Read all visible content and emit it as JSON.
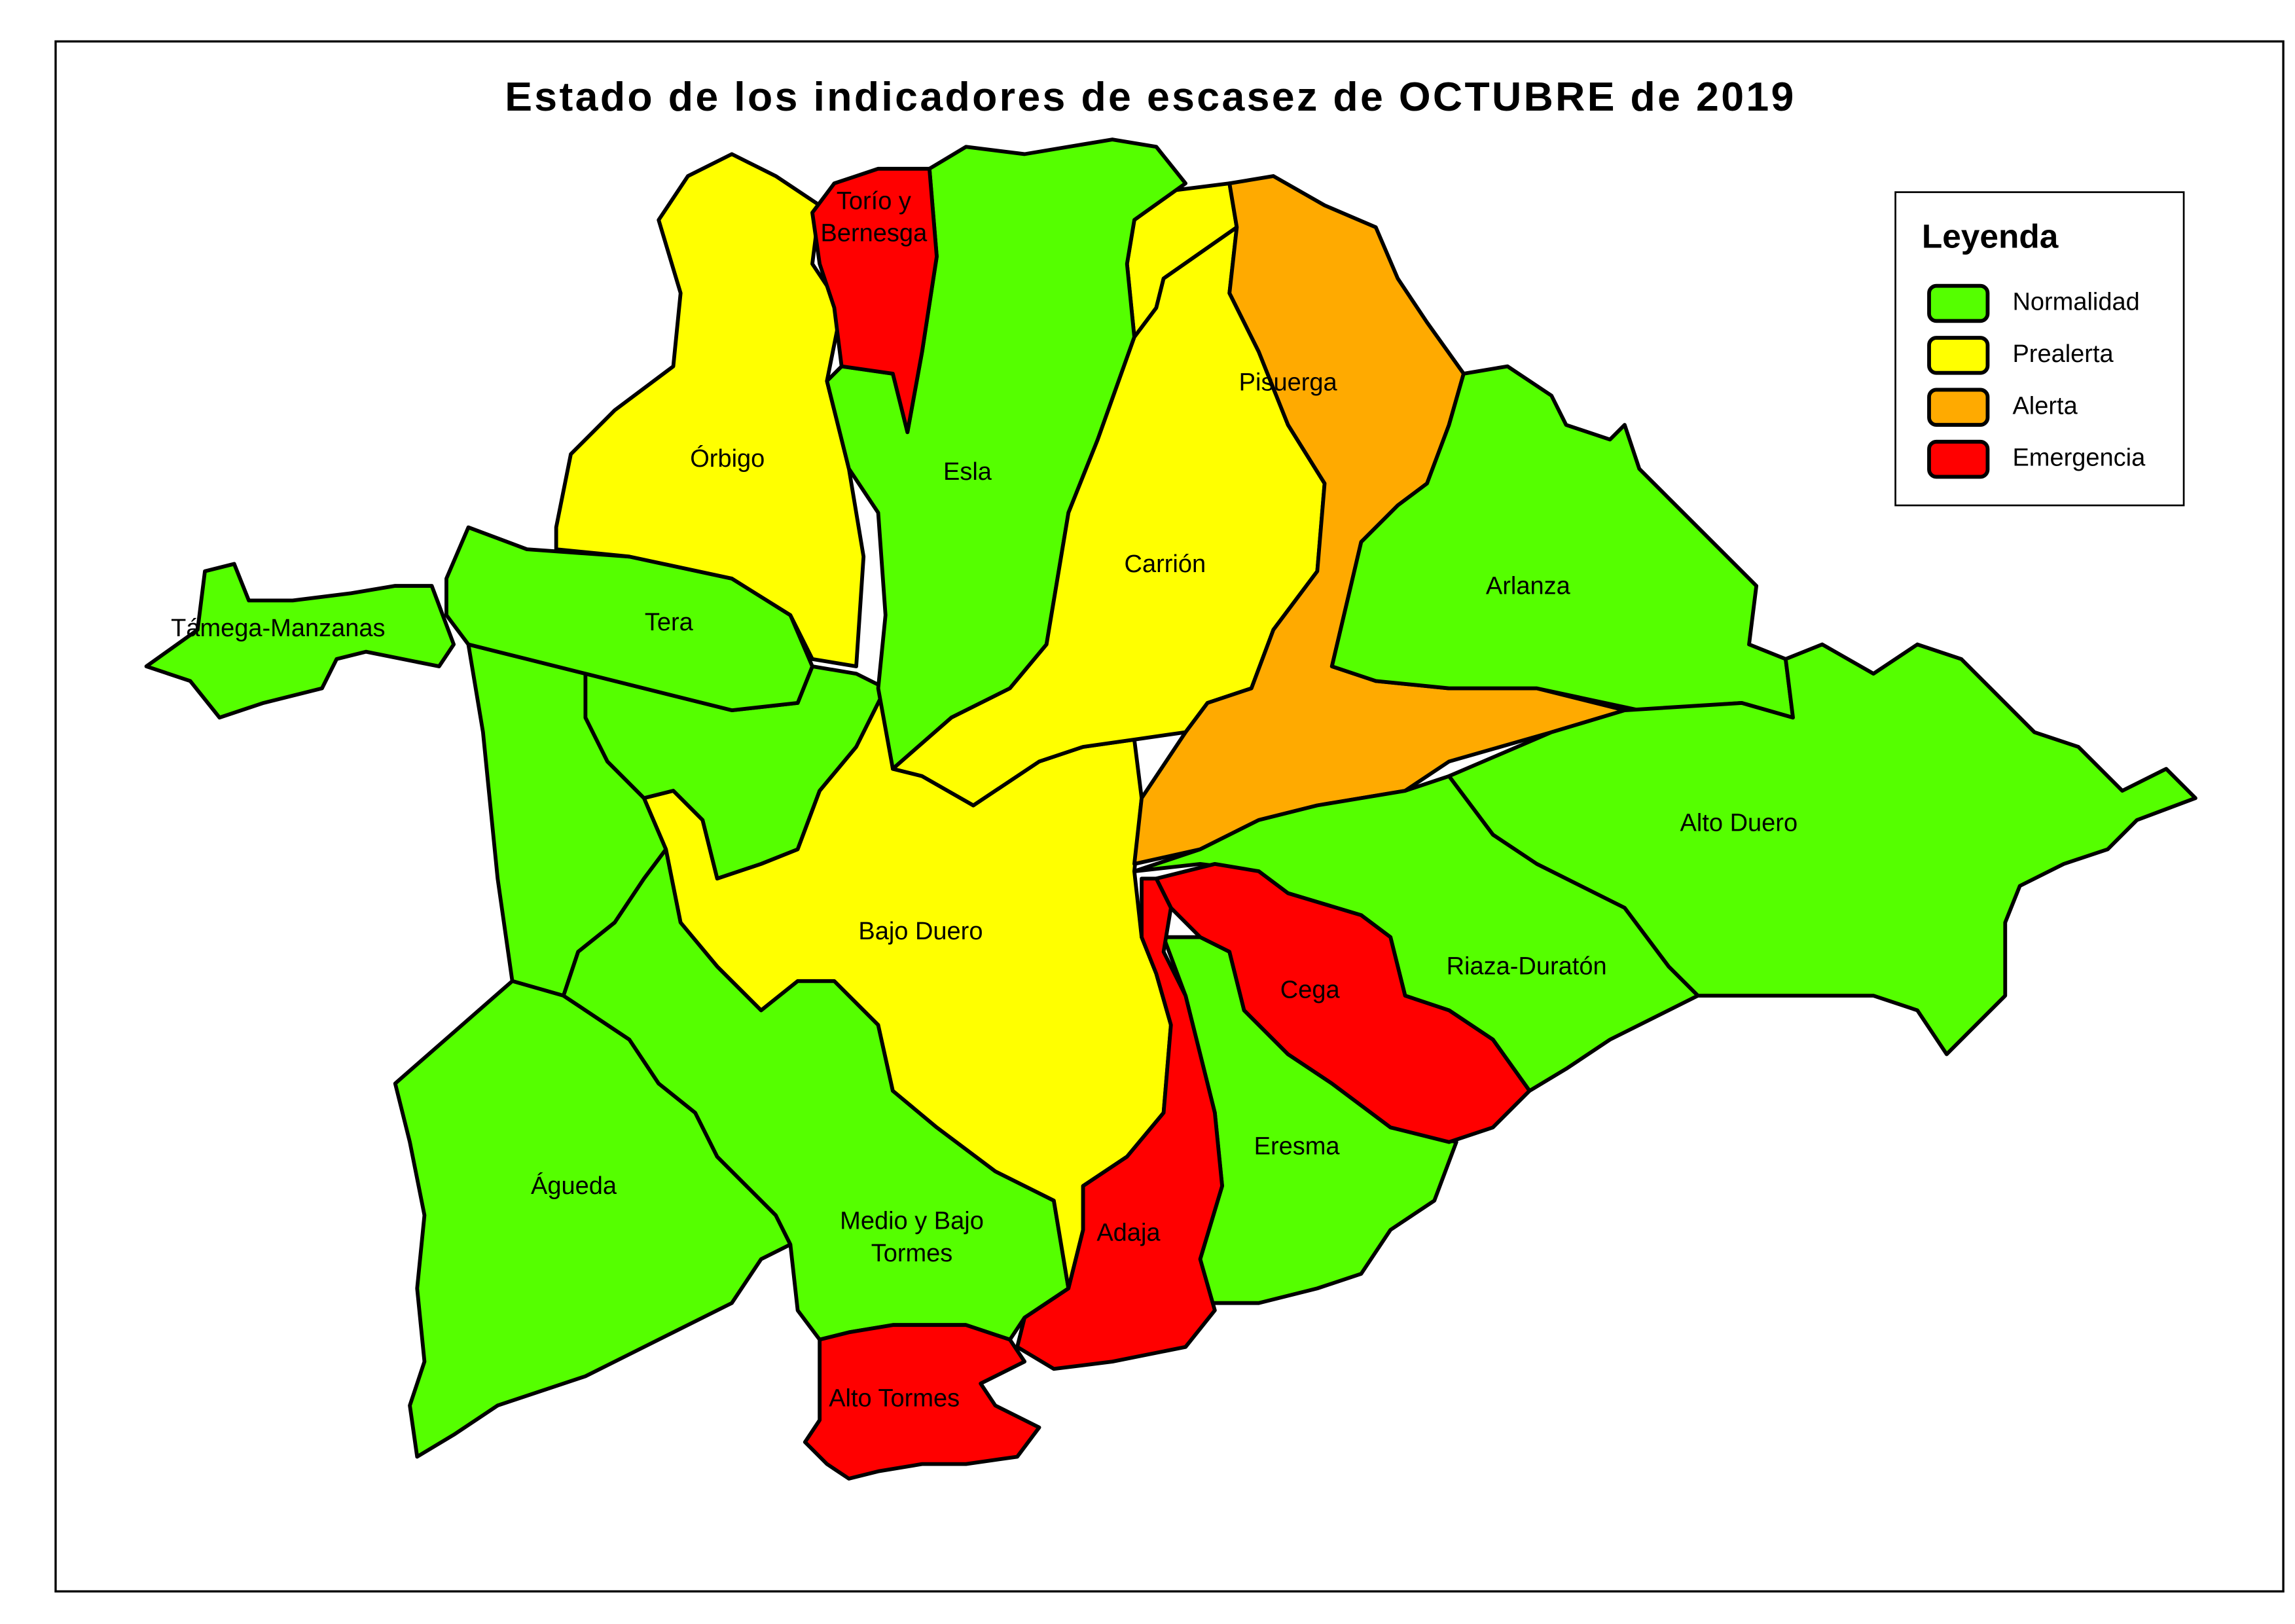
{
  "title": "Estado de los indicadores de escasez de OCTUBRE de 2019",
  "legend": {
    "title": "Leyenda",
    "items": [
      {
        "label": "Normalidad",
        "color": "#55ff00"
      },
      {
        "label": "Prealerta",
        "color": "#ffff00"
      },
      {
        "label": "Alerta",
        "color": "#ffaa00"
      },
      {
        "label": "Emergencia",
        "color": "#ff0000"
      }
    ]
  },
  "regions": [
    {
      "label": [
        "Támega-Manzanas"
      ],
      "color": "#55ff00"
    },
    {
      "label": [
        "Tera"
      ],
      "color": "#55ff00"
    },
    {
      "label": [
        "Órbigo"
      ],
      "color": "#ffff00"
    },
    {
      "label": [
        "Torío y",
        "Bernesga"
      ],
      "color": "#ff0000"
    },
    {
      "label": [
        "Esla"
      ],
      "color": "#55ff00"
    },
    {
      "label": [
        "Carrión"
      ],
      "color": "#ffff00"
    },
    {
      "label": [
        "Pisuerga"
      ],
      "color": "#ffaa00"
    },
    {
      "label": [
        "Arlanza"
      ],
      "color": "#55ff00"
    },
    {
      "label": [
        "Alto Duero"
      ],
      "color": "#55ff00"
    },
    {
      "label": [
        "Bajo Duero"
      ],
      "color": "#ffff00"
    },
    {
      "label": [
        "Riaza-Duratón"
      ],
      "color": "#55ff00"
    },
    {
      "label": [
        "Cega"
      ],
      "color": "#ff0000"
    },
    {
      "label": [
        "Eresma"
      ],
      "color": "#55ff00"
    },
    {
      "label": [
        "Adaja"
      ],
      "color": "#ff0000"
    },
    {
      "label": [
        "Águeda"
      ],
      "color": "#55ff00"
    },
    {
      "label": [
        "Medio y Bajo",
        "Tormes"
      ],
      "color": "#55ff00"
    },
    {
      "label": [
        "Alto Tormes"
      ],
      "color": "#ff0000"
    }
  ]
}
